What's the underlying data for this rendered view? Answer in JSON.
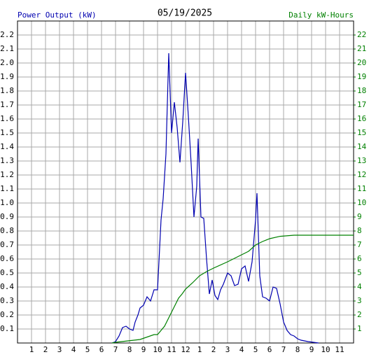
{
  "chart_data": {
    "type": "line",
    "title": "05/19/2025",
    "y_label": "Power Output (kW)",
    "y2_label": "Daily kW-Hours",
    "grid": true,
    "xlim": [
      0,
      24
    ],
    "xticks": [
      {
        "value": 1,
        "label": "1"
      },
      {
        "value": 2,
        "label": "2"
      },
      {
        "value": 3,
        "label": "3"
      },
      {
        "value": 4,
        "label": "4"
      },
      {
        "value": 5,
        "label": "5"
      },
      {
        "value": 6,
        "label": "6"
      },
      {
        "value": 7,
        "label": "7"
      },
      {
        "value": 8,
        "label": "8"
      },
      {
        "value": 9,
        "label": "9"
      },
      {
        "value": 10,
        "label": "10"
      },
      {
        "value": 11,
        "label": "11"
      },
      {
        "value": 12,
        "label": "12"
      },
      {
        "value": 13,
        "label": "1"
      },
      {
        "value": 14,
        "label": "2"
      },
      {
        "value": 15,
        "label": "3"
      },
      {
        "value": 16,
        "label": "4"
      },
      {
        "value": 17,
        "label": "5"
      },
      {
        "value": 18,
        "label": "6"
      },
      {
        "value": 19,
        "label": "7"
      },
      {
        "value": 20,
        "label": "8"
      },
      {
        "value": 21,
        "label": "9"
      },
      {
        "value": 22,
        "label": "10"
      },
      {
        "value": 23,
        "label": "11"
      }
    ],
    "ylim": [
      0,
      2.3
    ],
    "yticks": [
      0.1,
      0.2,
      0.3,
      0.4,
      0.5,
      0.6,
      0.7,
      0.8,
      0.9,
      {
        "value": 1,
        "label": "1.0"
      },
      1.1,
      1.2,
      1.3,
      1.4,
      1.5,
      1.6,
      1.7,
      1.8,
      1.9,
      {
        "value": 2,
        "label": "2.0"
      },
      2.1,
      2.2
    ],
    "y2lim": [
      0,
      23
    ],
    "y2ticks": [
      1,
      2,
      3,
      4,
      5,
      6,
      7,
      8,
      9,
      10,
      11,
      12,
      13,
      14,
      15,
      16,
      17,
      18,
      19,
      20,
      21,
      22
    ],
    "series": [
      {
        "name": "Power Output (kW)",
        "color": "#0000b0",
        "axis": "y",
        "x": [
          6.75,
          7.0,
          7.25,
          7.5,
          7.75,
          8.0,
          8.25,
          8.4,
          8.6,
          8.75,
          9.0,
          9.25,
          9.5,
          9.75,
          10.0,
          10.25,
          10.4,
          10.6,
          10.8,
          11.0,
          11.2,
          11.4,
          11.6,
          11.8,
          12.0,
          12.2,
          12.4,
          12.6,
          12.8,
          12.9,
          13.1,
          13.3,
          13.5,
          13.7,
          13.9,
          14.1,
          14.3,
          14.5,
          14.7,
          15.0,
          15.25,
          15.5,
          15.75,
          16.0,
          16.25,
          16.5,
          16.75,
          17.0,
          17.1,
          17.3,
          17.5,
          17.75,
          18.0,
          18.25,
          18.5,
          18.75,
          19.0,
          19.25,
          19.5,
          19.75,
          20.0,
          20.25,
          20.75,
          21.5
        ],
        "values": [
          0,
          0.01,
          0.05,
          0.11,
          0.12,
          0.1,
          0.09,
          0.15,
          0.2,
          0.25,
          0.27,
          0.33,
          0.3,
          0.38,
          0.38,
          0.88,
          1.03,
          1.35,
          2.07,
          1.5,
          1.72,
          1.54,
          1.29,
          1.58,
          1.93,
          1.62,
          1.28,
          0.9,
          1.12,
          1.46,
          0.9,
          0.89,
          0.6,
          0.35,
          0.45,
          0.34,
          0.31,
          0.38,
          0.42,
          0.5,
          0.48,
          0.41,
          0.42,
          0.53,
          0.55,
          0.44,
          0.58,
          0.88,
          1.07,
          0.48,
          0.33,
          0.32,
          0.3,
          0.4,
          0.39,
          0.28,
          0.15,
          0.09,
          0.06,
          0.05,
          0.03,
          0.02,
          0.01,
          0
        ]
      },
      {
        "name": "Daily kW-Hours",
        "color": "#008000",
        "axis": "y2",
        "x": [
          6.75,
          7.0,
          8.75,
          9.75,
          10.0,
          10.25,
          10.5,
          10.75,
          11.0,
          11.25,
          11.5,
          11.75,
          12.0,
          12.5,
          13.0,
          13.5,
          14.0,
          15.0,
          16.0,
          16.5,
          17.0,
          17.5,
          18.0,
          18.75,
          19.75,
          24.0
        ],
        "values": [
          0,
          0.05,
          0.25,
          0.6,
          0.6,
          0.9,
          1.2,
          1.7,
          2.2,
          2.7,
          3.2,
          3.5,
          3.85,
          4.3,
          4.8,
          5.1,
          5.35,
          5.8,
          6.3,
          6.55,
          7.0,
          7.25,
          7.45,
          7.62,
          7.7,
          7.7
        ]
      }
    ]
  }
}
